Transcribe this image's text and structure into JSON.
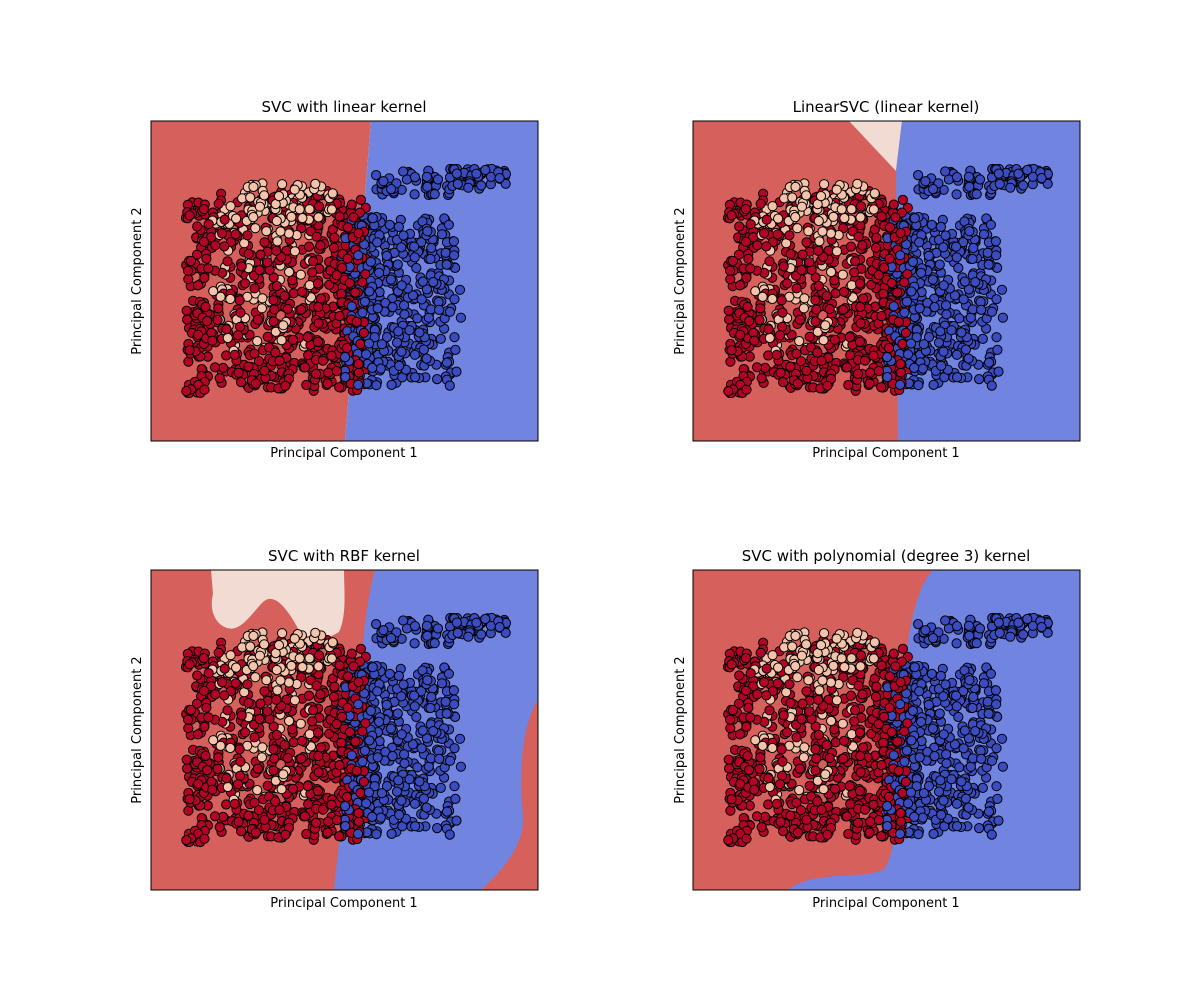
{
  "colors": {
    "region_class_0": "#d6605c",
    "region_class_1": "#f1dbd2",
    "region_class_2": "#7185e0",
    "point_class_0": "#b40426",
    "point_class_1": "#f4c4aa",
    "point_class_2": "#3b4cc0",
    "point_edge": "#000000"
  },
  "chart_data": [
    {
      "type": "scatter",
      "title": "SVC with linear kernel",
      "xlabel": "Principal Component 1",
      "ylabel": "Principal Component 2",
      "ticks": "hidden",
      "regions": [
        "class 0",
        "class 2"
      ]
    },
    {
      "type": "scatter",
      "title": "LinearSVC (linear kernel)",
      "xlabel": "Principal Component 1",
      "ylabel": "Principal Component 2",
      "ticks": "hidden",
      "regions": [
        "class 0",
        "class 1",
        "class 2"
      ]
    },
    {
      "type": "scatter",
      "title": "SVC with RBF kernel",
      "xlabel": "Principal Component 1",
      "ylabel": "Principal Component 2",
      "ticks": "hidden",
      "regions": [
        "class 0",
        "class 1",
        "class 2"
      ]
    },
    {
      "type": "scatter",
      "title": "SVC with polynomial (degree 3) kernel",
      "xlabel": "Principal Component 1",
      "ylabel": "Principal Component 2",
      "ticks": "hidden",
      "regions": [
        "class 0",
        "class 2"
      ]
    }
  ]
}
